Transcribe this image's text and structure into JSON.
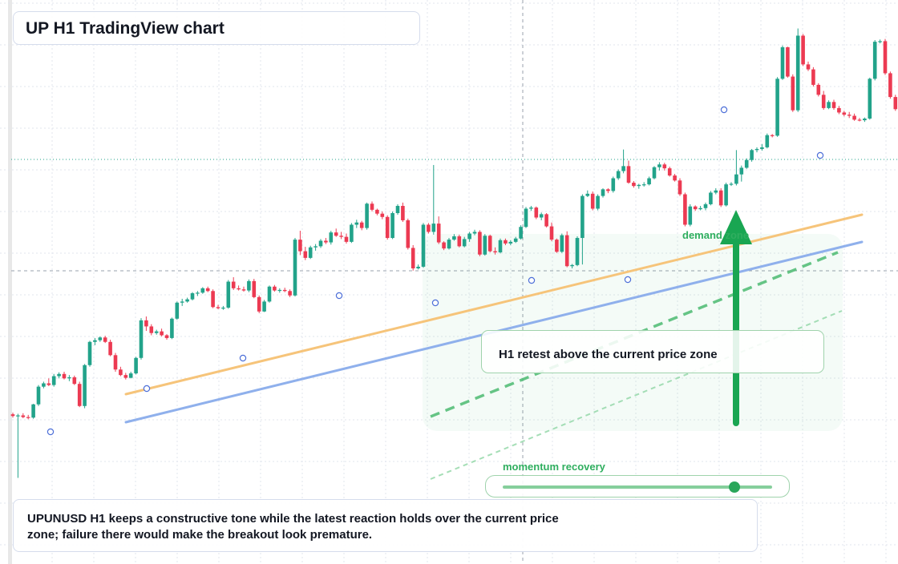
{
  "title": "UP H1 TradingView chart",
  "callout": "H1 retest above the current price zone",
  "zone_label": "demand zone",
  "momentum": {
    "label": "momentum recovery",
    "level": 0.86
  },
  "note": "UPUNUSD H1 keeps a constructive tone while the latest reaction holds over the current price zone; failure there would make the breakout look premature.",
  "colors": {
    "up": "#22a38a",
    "down": "#ec3a52",
    "support_main": "#f6c47a",
    "support_lower": "#8fb0ec",
    "accent": "#19a652",
    "grid": "#e2e6ee"
  },
  "chart_data": {
    "type": "candlestick",
    "ylim": [
      0,
      100
    ],
    "grid": true,
    "candles": [
      [
        26.5,
        26.8,
        25.9,
        26.2
      ],
      [
        26.2,
        26.6,
        15.0,
        26.3
      ],
      [
        26.3,
        26.7,
        25.8,
        26.0
      ],
      [
        26.0,
        26.4,
        25.6,
        25.9
      ],
      [
        25.9,
        28.4,
        25.7,
        28.3
      ],
      [
        28.3,
        31.8,
        28.0,
        31.5
      ],
      [
        31.5,
        32.4,
        31.2,
        32.1
      ],
      [
        32.1,
        33.0,
        31.6,
        31.8
      ],
      [
        31.8,
        33.8,
        31.5,
        33.4
      ],
      [
        33.4,
        34.1,
        33.0,
        33.8
      ],
      [
        33.8,
        34.2,
        32.8,
        33.0
      ],
      [
        33.0,
        33.6,
        32.5,
        33.2
      ],
      [
        33.2,
        33.5,
        31.8,
        32.0
      ],
      [
        32.0,
        32.4,
        27.8,
        28.0
      ],
      [
        28.0,
        35.6,
        27.6,
        35.4
      ],
      [
        35.4,
        39.8,
        35.1,
        39.6
      ],
      [
        39.6,
        40.3,
        39.0,
        39.9
      ],
      [
        39.9,
        40.6,
        39.6,
        40.4
      ],
      [
        40.4,
        40.7,
        39.4,
        39.6
      ],
      [
        39.6,
        40.0,
        37.0,
        37.2
      ],
      [
        37.2,
        37.6,
        34.2,
        34.6
      ],
      [
        34.6,
        35.1,
        33.4,
        33.6
      ],
      [
        33.6,
        34.0,
        32.8,
        33.1
      ],
      [
        33.1,
        34.2,
        33.0,
        33.9
      ],
      [
        33.9,
        36.9,
        33.7,
        36.7
      ],
      [
        36.7,
        43.9,
        36.4,
        43.5
      ],
      [
        43.5,
        44.2,
        41.6,
        42.4
      ],
      [
        42.4,
        42.8,
        40.8,
        41.2
      ],
      [
        41.2,
        41.8,
        40.9,
        41.5
      ],
      [
        41.5,
        42.0,
        40.6,
        40.8
      ],
      [
        40.8,
        41.0,
        40.0,
        40.3
      ],
      [
        40.3,
        44.0,
        40.1,
        43.8
      ],
      [
        43.8,
        46.9,
        43.6,
        46.7
      ],
      [
        46.7,
        47.4,
        46.1,
        46.9
      ],
      [
        46.9,
        47.6,
        46.7,
        47.3
      ],
      [
        47.3,
        48.6,
        47.1,
        48.4
      ],
      [
        48.4,
        48.8,
        47.9,
        48.5
      ],
      [
        48.5,
        49.5,
        48.3,
        49.3
      ],
      [
        49.3,
        49.6,
        48.6,
        48.8
      ],
      [
        48.8,
        49.1,
        45.7,
        45.9
      ],
      [
        45.9,
        46.3,
        45.5,
        45.7
      ],
      [
        45.7,
        46.1,
        45.4,
        45.8
      ],
      [
        45.8,
        50.8,
        45.6,
        50.5
      ],
      [
        50.5,
        51.3,
        49.0,
        49.3
      ],
      [
        49.3,
        49.8,
        48.9,
        49.1
      ],
      [
        49.1,
        49.6,
        48.7,
        48.9
      ],
      [
        48.9,
        50.9,
        48.6,
        50.6
      ],
      [
        50.6,
        51.0,
        47.5,
        47.7
      ],
      [
        47.7,
        48.0,
        44.8,
        45.1
      ],
      [
        45.1,
        47.2,
        45.0,
        46.9
      ],
      [
        46.9,
        49.8,
        46.7,
        49.6
      ],
      [
        49.6,
        49.9,
        48.7,
        48.9
      ],
      [
        48.9,
        49.3,
        48.5,
        49.0
      ],
      [
        49.0,
        49.4,
        48.6,
        48.8
      ],
      [
        48.8,
        49.1,
        47.7,
        48.0
      ],
      [
        48.0,
        58.4,
        47.8,
        58.1
      ],
      [
        58.1,
        59.7,
        55.3,
        56.0
      ],
      [
        56.0,
        56.8,
        54.4,
        54.8
      ],
      [
        54.8,
        57.0,
        54.6,
        56.7
      ],
      [
        56.7,
        57.3,
        56.1,
        56.9
      ],
      [
        56.9,
        58.2,
        56.6,
        57.9
      ],
      [
        57.9,
        58.4,
        57.3,
        57.6
      ],
      [
        57.6,
        59.7,
        57.2,
        59.4
      ],
      [
        59.4,
        60.1,
        58.6,
        58.8
      ],
      [
        58.8,
        59.5,
        58.2,
        58.6
      ],
      [
        58.6,
        59.2,
        57.4,
        57.7
      ],
      [
        57.7,
        61.1,
        57.5,
        60.8
      ],
      [
        60.8,
        61.7,
        60.2,
        61.2
      ],
      [
        61.2,
        61.5,
        59.8,
        60.2
      ],
      [
        60.2,
        64.8,
        59.9,
        64.6
      ],
      [
        64.6,
        65.0,
        63.2,
        63.5
      ],
      [
        63.5,
        63.7,
        62.5,
        62.8
      ],
      [
        62.8,
        63.2,
        61.8,
        62.2
      ],
      [
        62.2,
        62.5,
        58.1,
        58.4
      ],
      [
        58.4,
        63.2,
        58.2,
        62.9
      ],
      [
        62.9,
        64.5,
        62.6,
        64.2
      ],
      [
        64.2,
        64.8,
        61.3,
        61.6
      ],
      [
        61.6,
        61.9,
        56.3,
        56.6
      ],
      [
        56.6,
        57.1,
        52.5,
        52.9
      ],
      [
        52.9,
        53.6,
        52.7,
        53.2
      ],
      [
        53.2,
        61.1,
        53.0,
        60.8
      ],
      [
        60.8,
        61.1,
        59.2,
        59.5
      ],
      [
        59.5,
        71.6,
        59.0,
        61.0
      ],
      [
        61.0,
        62.3,
        57.3,
        57.6
      ],
      [
        57.6,
        57.8,
        56.2,
        56.5
      ],
      [
        56.5,
        58.4,
        56.3,
        58.1
      ],
      [
        58.1,
        59.1,
        57.9,
        58.7
      ],
      [
        58.7,
        59.0,
        56.7,
        56.9
      ],
      [
        56.9,
        58.6,
        56.7,
        58.2
      ],
      [
        58.2,
        59.5,
        57.7,
        59.2
      ],
      [
        59.2,
        59.9,
        58.9,
        59.5
      ],
      [
        59.5,
        59.8,
        55.1,
        55.4
      ],
      [
        55.4,
        59.1,
        55.2,
        58.8
      ],
      [
        58.8,
        59.0,
        55.8,
        56.0
      ],
      [
        56.0,
        56.7,
        55.4,
        55.8
      ],
      [
        55.8,
        58.3,
        55.6,
        58.0
      ],
      [
        58.0,
        58.3,
        57.1,
        57.4
      ],
      [
        57.4,
        58.0,
        57.1,
        57.7
      ],
      [
        57.7,
        58.6,
        57.5,
        58.3
      ],
      [
        58.3,
        60.7,
        58.1,
        60.4
      ],
      [
        60.4,
        64.0,
        60.2,
        63.7
      ],
      [
        63.7,
        64.2,
        63.3,
        63.9
      ],
      [
        63.9,
        64.1,
        61.8,
        62.1
      ],
      [
        62.1,
        63.0,
        61.6,
        62.7
      ],
      [
        62.7,
        62.9,
        60.3,
        60.5
      ],
      [
        60.5,
        61.2,
        57.8,
        58.1
      ],
      [
        58.1,
        58.3,
        55.7,
        55.9
      ],
      [
        55.9,
        59.2,
        55.7,
        58.9
      ],
      [
        58.9,
        59.6,
        53.1,
        53.3
      ],
      [
        53.3,
        53.7,
        52.9,
        53.5
      ],
      [
        53.5,
        58.7,
        53.3,
        58.4
      ],
      [
        58.4,
        66.3,
        53.6,
        66.0
      ],
      [
        66.0,
        67.0,
        65.8,
        66.4
      ],
      [
        66.4,
        66.8,
        63.4,
        63.7
      ],
      [
        63.7,
        66.3,
        63.4,
        66.0
      ],
      [
        66.0,
        67.4,
        65.7,
        67.2
      ],
      [
        67.2,
        67.4,
        66.5,
        66.9
      ],
      [
        66.9,
        69.5,
        66.6,
        69.2
      ],
      [
        69.2,
        70.8,
        68.9,
        70.5
      ],
      [
        70.5,
        74.4,
        70.1,
        71.4
      ],
      [
        71.4,
        72.4,
        68.2,
        68.4
      ],
      [
        68.4,
        68.7,
        67.5,
        67.8
      ],
      [
        67.8,
        68.2,
        67.3,
        68.0
      ],
      [
        68.0,
        68.5,
        67.7,
        68.1
      ],
      [
        68.1,
        69.5,
        67.9,
        69.2
      ],
      [
        69.2,
        71.4,
        69.0,
        71.2
      ],
      [
        71.2,
        72.1,
        70.6,
        71.7
      ],
      [
        71.7,
        72.0,
        70.6,
        71.0
      ],
      [
        71.0,
        71.3,
        69.5,
        69.7
      ],
      [
        69.7,
        70.0,
        68.6,
        68.8
      ],
      [
        68.8,
        69.2,
        66.0,
        66.3
      ],
      [
        66.3,
        66.6,
        60.5,
        60.8
      ],
      [
        60.8,
        64.5,
        60.5,
        64.1
      ],
      [
        64.1,
        64.3,
        63.3,
        63.6
      ],
      [
        63.6,
        64.2,
        63.4,
        63.8
      ],
      [
        63.8,
        64.8,
        63.4,
        64.5
      ],
      [
        64.5,
        66.9,
        64.3,
        66.6
      ],
      [
        66.6,
        67.4,
        66.3,
        67.0
      ],
      [
        67.0,
        67.4,
        64.0,
        64.3
      ],
      [
        64.3,
        68.4,
        64.1,
        68.1
      ],
      [
        68.1,
        68.5,
        67.8,
        68.2
      ],
      [
        68.2,
        74.3,
        67.9,
        69.9
      ],
      [
        69.9,
        71.5,
        68.6,
        71.1
      ],
      [
        71.1,
        72.8,
        70.9,
        72.5
      ],
      [
        72.5,
        74.5,
        72.2,
        74.3
      ],
      [
        74.3,
        74.8,
        73.9,
        74.5
      ],
      [
        74.5,
        75.4,
        74.2,
        74.8
      ],
      [
        74.8,
        77.3,
        74.6,
        77.0
      ],
      [
        77.0,
        77.2,
        76.6,
        76.9
      ],
      [
        76.9,
        87.5,
        76.7,
        87.2
      ],
      [
        87.2,
        93.2,
        87.0,
        92.9
      ],
      [
        92.9,
        93.0,
        87.4,
        87.6
      ],
      [
        87.6,
        88.0,
        81.2,
        81.5
      ],
      [
        81.5,
        96.3,
        81.2,
        95.0
      ],
      [
        95.0,
        95.3,
        89.5,
        89.8
      ],
      [
        89.8,
        90.3,
        88.6,
        88.9
      ],
      [
        88.9,
        89.3,
        85.8,
        86.1
      ],
      [
        86.1,
        86.4,
        84.0,
        84.3
      ],
      [
        84.3,
        85.0,
        81.6,
        81.9
      ],
      [
        81.9,
        83.3,
        81.7,
        83.0
      ],
      [
        83.0,
        83.4,
        81.6,
        81.9
      ],
      [
        81.9,
        82.3,
        80.8,
        81.1
      ],
      [
        81.1,
        81.4,
        80.4,
        80.7
      ],
      [
        80.7,
        81.2,
        80.1,
        80.5
      ],
      [
        80.5,
        80.9,
        79.6,
        79.8
      ],
      [
        79.8,
        80.1,
        79.5,
        79.7
      ],
      [
        79.7,
        80.2,
        79.4,
        80.0
      ],
      [
        80.0,
        87.4,
        79.8,
        87.2
      ],
      [
        87.2,
        94.2,
        86.9,
        93.9
      ],
      [
        93.9,
        94.3,
        93.6,
        94.0
      ],
      [
        94.0,
        94.4,
        87.9,
        88.2
      ],
      [
        88.2,
        88.5,
        83.6,
        83.9
      ],
      [
        83.9,
        84.3,
        81.4,
        81.7
      ],
      [
        81.7,
        82.1,
        76.0,
        76.3
      ],
      [
        76.3,
        81.2,
        76.1,
        80.9
      ],
      [
        80.9,
        81.3,
        78.3,
        78.6
      ],
      [
        78.6,
        78.9,
        77.7,
        78.0
      ],
      [
        78.0,
        79.1,
        77.8,
        78.8
      ],
      [
        78.8,
        79.2,
        76.2,
        76.5
      ],
      [
        76.5,
        84.8,
        76.3,
        84.5
      ]
    ]
  }
}
